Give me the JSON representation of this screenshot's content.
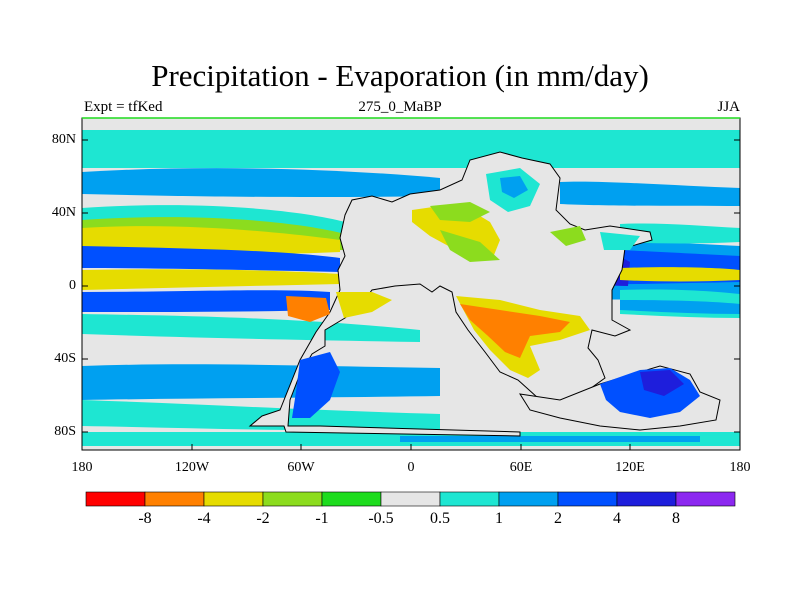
{
  "title": "Precipitation - Evaporation (in mm/day)",
  "subtitle_left": "Expt = tfKed",
  "subtitle_center": "275_0_MaBP",
  "subtitle_right": "JJA",
  "lat_ticks": [
    "80N",
    "40N",
    "0",
    "40S",
    "80S"
  ],
  "lon_ticks": [
    "180",
    "120W",
    "60W",
    "0",
    "60E",
    "120E",
    "180"
  ],
  "colorbar": {
    "labels": [
      "-8",
      "-4",
      "-2",
      "-1",
      "-0.5",
      "0.5",
      "1",
      "2",
      "4",
      "8"
    ],
    "colors": [
      "#ff0000",
      "#ff8000",
      "#e6dc00",
      "#8cdc1e",
      "#1edc1e",
      "#e6e6e6",
      "#1ee6d2",
      "#00a0f0",
      "#0050ff",
      "#1e1edc",
      "#8c28f0"
    ]
  },
  "colors": {
    "land": "#e6e6e6",
    "coast": "#000000",
    "frame": "#000000"
  }
}
